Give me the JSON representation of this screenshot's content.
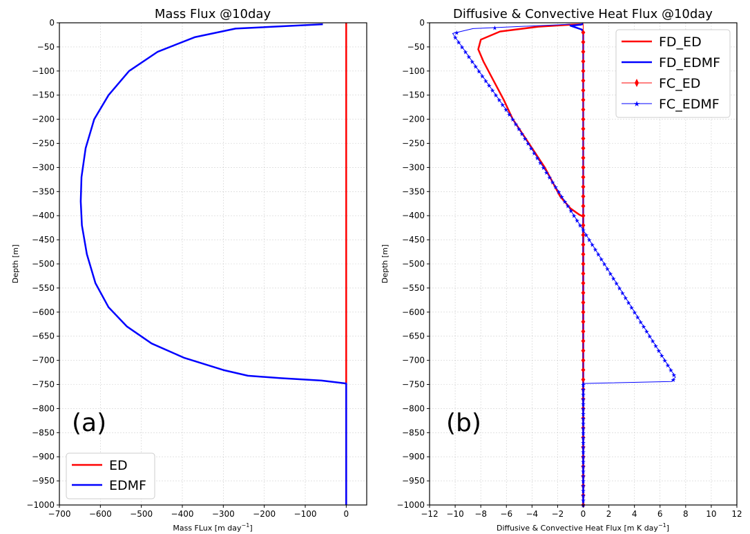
{
  "chart_data": [
    {
      "panel_label": "(a)",
      "type": "line",
      "title": "Mass Flux @10day",
      "xlabel": "Mass FLux [m day",
      "xlabel_sup": "−1",
      "xlabel_end": "]",
      "ylabel": "Depth [m]",
      "xlim": [
        -700,
        50
      ],
      "ylim": [
        -1000,
        0
      ],
      "xticks": [
        -700,
        -600,
        -500,
        -400,
        -300,
        -200,
        -100,
        0
      ],
      "yticks": [
        0,
        -50,
        -100,
        -150,
        -200,
        -250,
        -300,
        -350,
        -400,
        -450,
        -500,
        -550,
        -600,
        -650,
        -700,
        -750,
        -800,
        -850,
        -900,
        -950,
        -1000
      ],
      "grid": true,
      "legend_position": "bottom-left",
      "series": [
        {
          "name": "ED",
          "color": "#ff0000",
          "width": 2.5,
          "marker": "none",
          "x": [
            0,
            0
          ],
          "y": [
            0,
            -1000
          ]
        },
        {
          "name": "EDMF",
          "color": "#0000ff",
          "width": 2.5,
          "marker": "none",
          "x": [
            -57,
            -270,
            -370,
            -460,
            -530,
            -580,
            -615,
            -636,
            -646,
            -648,
            -645,
            -633,
            -612,
            -580,
            -535,
            -475,
            -395,
            -300,
            -240,
            -160,
            -60,
            0,
            0
          ],
          "y": [
            -3,
            -12,
            -30,
            -60,
            -100,
            -150,
            -200,
            -260,
            -320,
            -370,
            -420,
            -480,
            -540,
            -590,
            -630,
            -665,
            -695,
            -720,
            -732,
            -737,
            -742,
            -748,
            -1000
          ]
        }
      ]
    },
    {
      "panel_label": "(b)",
      "type": "line",
      "title": "Diffusive & Convective Heat Flux @10day",
      "xlabel": "Diffusive & Convective Heat Flux [m K day",
      "xlabel_sup": "−1",
      "xlabel_end": "]",
      "ylabel": "Depth [m]",
      "xlim": [
        -12,
        12
      ],
      "ylim": [
        -1000,
        0
      ],
      "xticks": [
        -12,
        -10,
        -8,
        -6,
        -4,
        -2,
        0,
        2,
        4,
        6,
        8,
        10,
        12
      ],
      "yticks": [
        0,
        -50,
        -100,
        -150,
        -200,
        -250,
        -300,
        -350,
        -400,
        -450,
        -500,
        -550,
        -600,
        -650,
        -700,
        -750,
        -800,
        -850,
        -900,
        -950,
        -1000
      ],
      "grid": true,
      "legend_position": "top-right",
      "series": [
        {
          "name": "FD_ED",
          "color": "#ff0000",
          "width": 2.5,
          "marker": "none",
          "x": [
            0,
            -1,
            -3.5,
            -6.5,
            -8,
            -8.2,
            -7.8,
            -7,
            -6.2,
            -5.5,
            -4.5,
            -3,
            -1.8,
            -1.0,
            -0.3,
            0,
            0
          ],
          "y": [
            -3,
            -4,
            -8,
            -18,
            -35,
            -55,
            -80,
            -120,
            -160,
            -200,
            -240,
            -300,
            -360,
            -385,
            -398,
            -402,
            -1000
          ]
        },
        {
          "name": "FD_EDMF",
          "color": "#0000ff",
          "width": 2.5,
          "marker": "none",
          "x": [
            0,
            -0.2,
            -1.0,
            -0.1,
            0,
            0
          ],
          "y": [
            -2,
            -4,
            -6,
            -14,
            -20,
            -1000
          ]
        },
        {
          "name": "FC_ED",
          "color": "#ff0000",
          "width": 1,
          "marker": "diamond",
          "x": [
            0,
            0
          ],
          "y": [
            -2,
            -1000
          ],
          "marker_step": 20
        },
        {
          "name": "FC_EDMF",
          "color": "#0000ff",
          "width": 1,
          "marker": "star",
          "x": [
            -1.0,
            -8.6,
            -10.2,
            -5.5,
            0,
            7.2,
            6.9,
            0,
            0
          ],
          "y": [
            -3,
            -12,
            -22,
            -200,
            -430,
            -735,
            -744,
            -748,
            -1000
          ],
          "marker_step": 10
        }
      ]
    }
  ]
}
